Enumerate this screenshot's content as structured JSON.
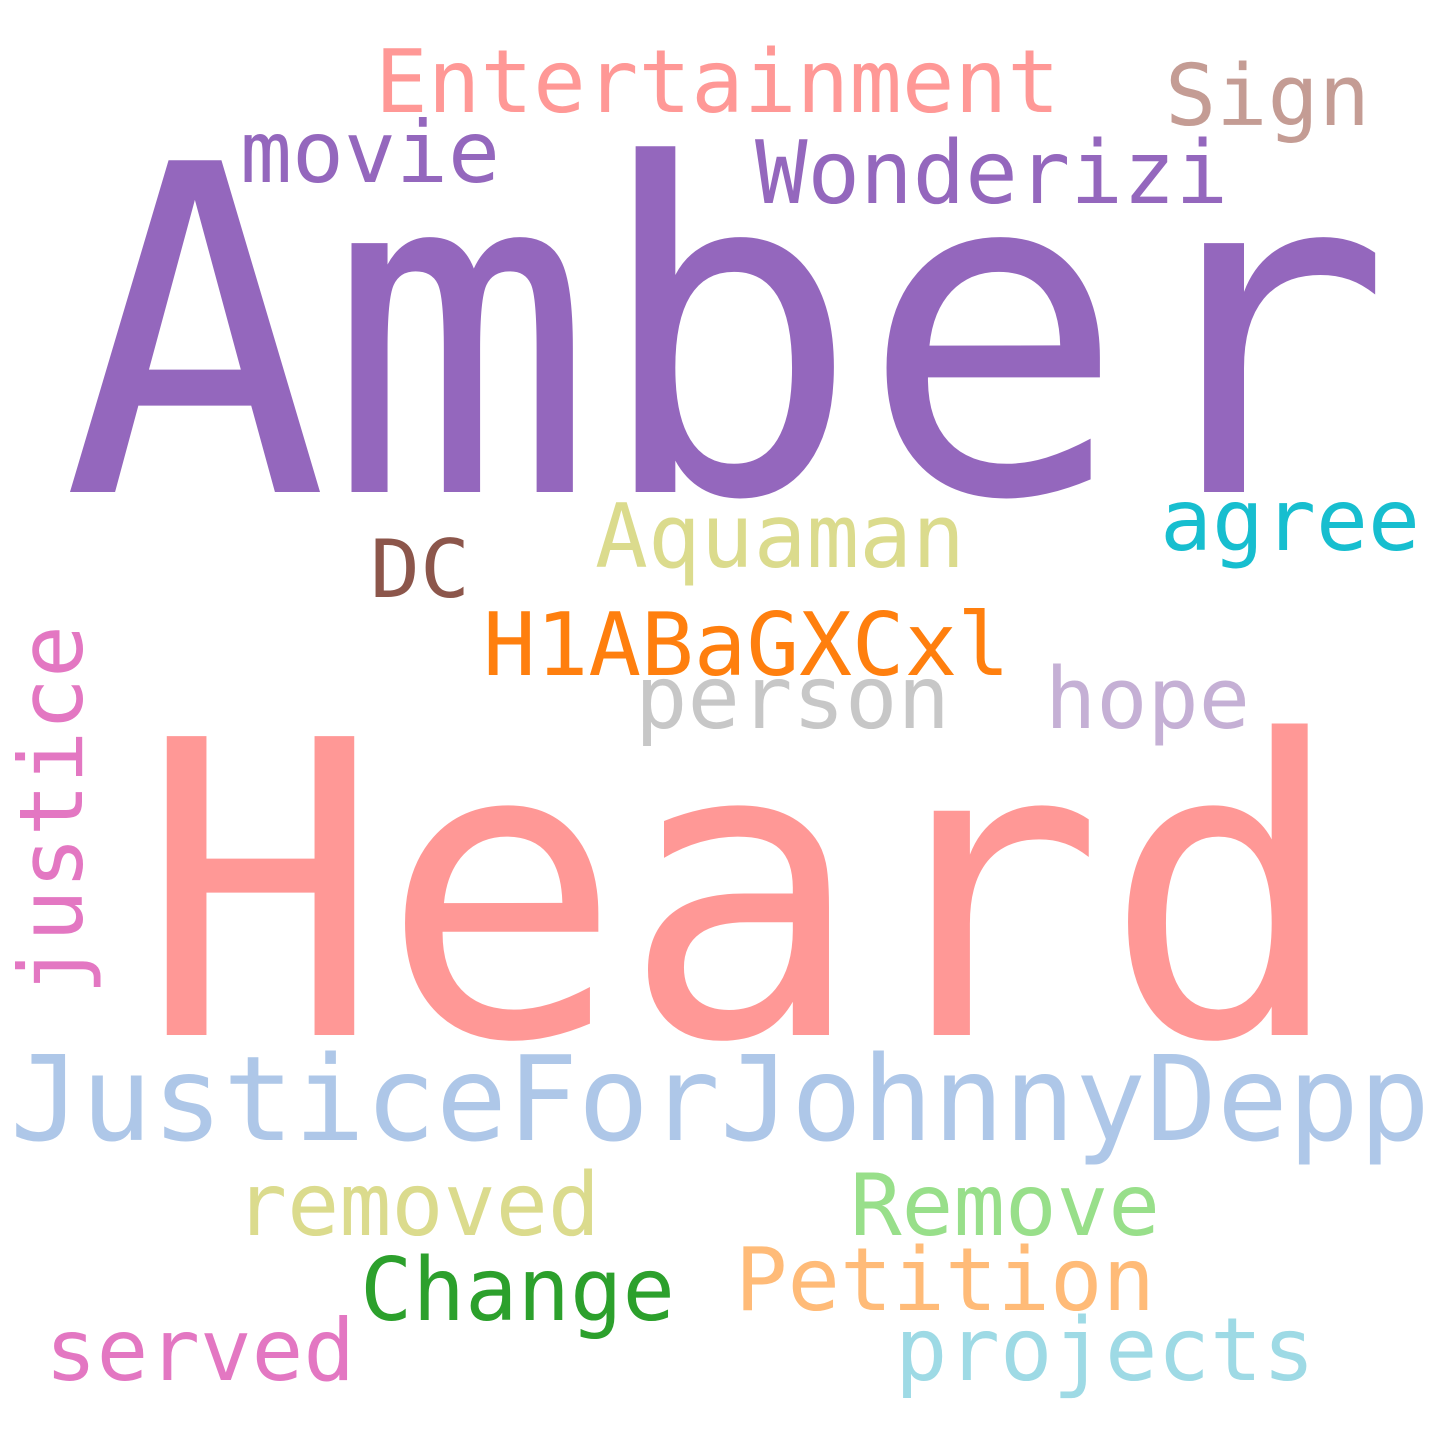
{
  "words": [
    {
      "text": "Amber",
      "color": "#9467bd"
    },
    {
      "text": "Heard",
      "color": "#ff9896"
    },
    {
      "text": "JusticeForJohnnyDepp",
      "color": "#aec7e8"
    },
    {
      "text": "Entertainment",
      "color": "#ff9896"
    },
    {
      "text": "Sign",
      "color": "#c49c94"
    },
    {
      "text": "movie",
      "color": "#9467bd"
    },
    {
      "text": "Wonderizi",
      "color": "#9467bd"
    },
    {
      "text": "DC",
      "color": "#8c564b"
    },
    {
      "text": "Aquaman",
      "color": "#dbdb8d"
    },
    {
      "text": "agree",
      "color": "#17becf"
    },
    {
      "text": "H1ABaGXCxl",
      "color": "#ff7f0e"
    },
    {
      "text": "person",
      "color": "#c7c7c7"
    },
    {
      "text": "hope",
      "color": "#c5b0d5"
    },
    {
      "text": "justice",
      "color": "#e377c2"
    },
    {
      "text": "removed",
      "color": "#dbdb8d"
    },
    {
      "text": "Remove",
      "color": "#98df8a"
    },
    {
      "text": "Petition",
      "color": "#ffbb78"
    },
    {
      "text": "Change",
      "color": "#2ca02c"
    },
    {
      "text": "served",
      "color": "#e377c2"
    },
    {
      "text": "projects",
      "color": "#9edae5"
    }
  ]
}
